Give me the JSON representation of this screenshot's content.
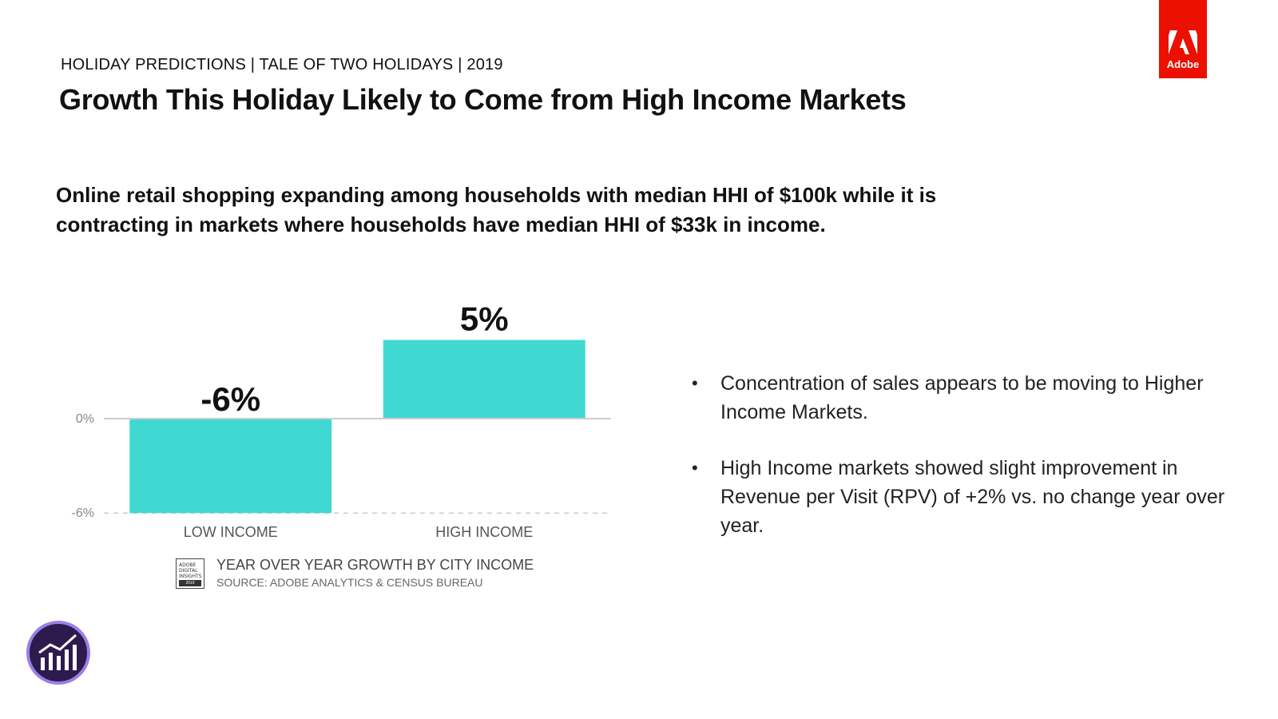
{
  "header": {
    "eyebrow": "HOLIDAY PREDICTIONS | TALE OF TWO HOLIDAYS | 2019",
    "title": "Growth This Holiday Likely to Come from High Income Markets"
  },
  "subtitle": "Online retail shopping expanding among households with median HHI of $100k while it is contracting in markets where households have median HHI of $33k in income.",
  "logo": {
    "text": "Adobe",
    "color": "#eb1000"
  },
  "chart_data": {
    "type": "bar",
    "categories": [
      "LOW INCOME",
      "HIGH INCOME"
    ],
    "values": [
      -6,
      5
    ],
    "data_labels": [
      "-6%",
      "5%"
    ],
    "yticks": [
      {
        "value": 0,
        "label": "0%"
      },
      {
        "value": -6,
        "label": "-6%"
      }
    ],
    "ylim": [
      -6,
      5
    ],
    "title": "YEAR OVER YEAR GROWTH BY CITY INCOME",
    "source": "SOURCE: ADOBE ANALYTICS & CENSUS BUREAU",
    "bar_color": "#40d9d2"
  },
  "badge": {
    "lines": [
      "ADOBE",
      "DIGITAL",
      "INSIGHTS"
    ],
    "year": "2019"
  },
  "bullets": [
    "Concentration of sales appears to be moving to Higher Income Markets.",
    "High Income markets showed slight improvement in Revenue per Visit (RPV) of  +2% vs. no change year over year."
  ],
  "icons": {
    "app": "adobe-analytics-icon",
    "app_color": "#2d1b4e",
    "app_ring": "#9b7fe8"
  }
}
